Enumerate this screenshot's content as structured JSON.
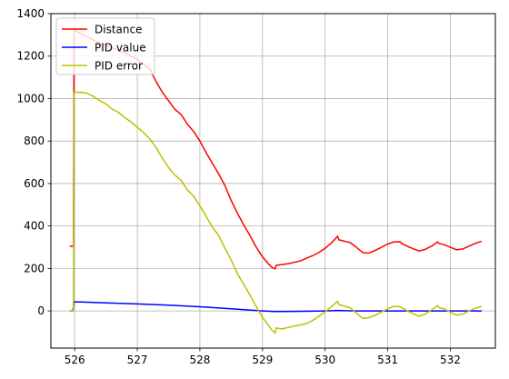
{
  "chart_data": {
    "type": "line",
    "title": "",
    "xlabel": "",
    "ylabel": "",
    "xlim": [
      525.62,
      532.72
    ],
    "ylim": [
      -175,
      1400
    ],
    "xticks": [
      526,
      527,
      528,
      529,
      530,
      531,
      532
    ],
    "yticks": [
      0,
      200,
      400,
      600,
      800,
      1000,
      1200,
      1400
    ],
    "grid": true,
    "legend": "upper-left",
    "series": [
      {
        "name": "Distance",
        "color": "#ff0000",
        "points": [
          [
            525.92,
            305
          ],
          [
            525.97,
            305
          ],
          [
            525.98,
            305
          ],
          [
            525.99,
            1330
          ],
          [
            526.02,
            1320
          ],
          [
            526.1,
            1305
          ],
          [
            526.2,
            1290
          ],
          [
            526.4,
            1262
          ],
          [
            526.6,
            1238
          ],
          [
            526.8,
            1215
          ],
          [
            527.0,
            1185
          ],
          [
            527.2,
            1140
          ],
          [
            527.3,
            1080
          ],
          [
            527.4,
            1030
          ],
          [
            527.5,
            990
          ],
          [
            527.6,
            950
          ],
          [
            527.7,
            925
          ],
          [
            527.8,
            880
          ],
          [
            527.9,
            845
          ],
          [
            528.0,
            800
          ],
          [
            528.1,
            745
          ],
          [
            528.2,
            695
          ],
          [
            528.3,
            645
          ],
          [
            528.4,
            590
          ],
          [
            528.5,
            520
          ],
          [
            528.6,
            460
          ],
          [
            528.7,
            405
          ],
          [
            528.8,
            355
          ],
          [
            528.9,
            300
          ],
          [
            529.0,
            255
          ],
          [
            529.1,
            220
          ],
          [
            529.15,
            205
          ],
          [
            529.2,
            198
          ],
          [
            529.22,
            215
          ],
          [
            529.4,
            222
          ],
          [
            529.6,
            235
          ],
          [
            529.8,
            260
          ],
          [
            529.9,
            275
          ],
          [
            530.0,
            295
          ],
          [
            530.1,
            320
          ],
          [
            530.2,
            352
          ],
          [
            530.22,
            335
          ],
          [
            530.4,
            322
          ],
          [
            530.5,
            300
          ],
          [
            530.6,
            275
          ],
          [
            530.7,
            272
          ],
          [
            530.8,
            285
          ],
          [
            530.9,
            300
          ],
          [
            531.0,
            315
          ],
          [
            531.1,
            325
          ],
          [
            531.2,
            326
          ],
          [
            531.22,
            318
          ],
          [
            531.35,
            300
          ],
          [
            531.5,
            282
          ],
          [
            531.6,
            290
          ],
          [
            531.7,
            305
          ],
          [
            531.8,
            325
          ],
          [
            531.82,
            318
          ],
          [
            531.9,
            312
          ],
          [
            532.0,
            300
          ],
          [
            532.1,
            288
          ],
          [
            532.2,
            292
          ],
          [
            532.3,
            305
          ],
          [
            532.4,
            318
          ],
          [
            532.5,
            328
          ]
        ]
      },
      {
        "name": "PID value",
        "color": "#0000ff",
        "points": [
          [
            525.92,
            0
          ],
          [
            525.97,
            0
          ],
          [
            525.99,
            42
          ],
          [
            526.1,
            42
          ],
          [
            526.5,
            38
          ],
          [
            527.0,
            33
          ],
          [
            527.5,
            27
          ],
          [
            528.0,
            20
          ],
          [
            528.5,
            10
          ],
          [
            528.9,
            2
          ],
          [
            529.0,
            0
          ],
          [
            529.2,
            -3
          ],
          [
            529.5,
            -2
          ],
          [
            530.0,
            0
          ],
          [
            530.2,
            2
          ],
          [
            530.5,
            0
          ],
          [
            531.0,
            0
          ],
          [
            531.5,
            0
          ],
          [
            532.0,
            0
          ],
          [
            532.5,
            0
          ]
        ]
      },
      {
        "name": "PID error",
        "color": "#bfbf00",
        "points": [
          [
            525.92,
            0
          ],
          [
            525.97,
            0
          ],
          [
            525.98,
            5
          ],
          [
            525.99,
            1030
          ],
          [
            526.1,
            1030
          ],
          [
            526.2,
            1025
          ],
          [
            526.3,
            1010
          ],
          [
            526.4,
            990
          ],
          [
            526.5,
            975
          ],
          [
            526.6,
            950
          ],
          [
            526.7,
            935
          ],
          [
            526.8,
            910
          ],
          [
            526.9,
            890
          ],
          [
            527.0,
            865
          ],
          [
            527.1,
            840
          ],
          [
            527.2,
            810
          ],
          [
            527.3,
            770
          ],
          [
            527.4,
            720
          ],
          [
            527.5,
            675
          ],
          [
            527.6,
            640
          ],
          [
            527.7,
            615
          ],
          [
            527.8,
            570
          ],
          [
            527.9,
            540
          ],
          [
            528.0,
            495
          ],
          [
            528.1,
            445
          ],
          [
            528.2,
            395
          ],
          [
            528.3,
            355
          ],
          [
            528.4,
            295
          ],
          [
            528.5,
            240
          ],
          [
            528.6,
            175
          ],
          [
            528.7,
            125
          ],
          [
            528.8,
            75
          ],
          [
            528.9,
            20
          ],
          [
            529.0,
            -30
          ],
          [
            529.1,
            -70
          ],
          [
            529.15,
            -90
          ],
          [
            529.2,
            -105
          ],
          [
            529.22,
            -80
          ],
          [
            529.3,
            -85
          ],
          [
            529.5,
            -72
          ],
          [
            529.7,
            -60
          ],
          [
            529.8,
            -45
          ],
          [
            529.9,
            -25
          ],
          [
            530.0,
            -5
          ],
          [
            530.1,
            20
          ],
          [
            530.2,
            45
          ],
          [
            530.22,
            30
          ],
          [
            530.4,
            15
          ],
          [
            530.5,
            -10
          ],
          [
            530.6,
            -35
          ],
          [
            530.7,
            -32
          ],
          [
            530.8,
            -20
          ],
          [
            530.9,
            -5
          ],
          [
            531.0,
            10
          ],
          [
            531.1,
            22
          ],
          [
            531.2,
            20
          ],
          [
            531.22,
            15
          ],
          [
            531.35,
            -5
          ],
          [
            531.5,
            -25
          ],
          [
            531.6,
            -15
          ],
          [
            531.7,
            5
          ],
          [
            531.8,
            25
          ],
          [
            531.82,
            15
          ],
          [
            531.9,
            10
          ],
          [
            532.0,
            -5
          ],
          [
            532.1,
            -20
          ],
          [
            532.2,
            -15
          ],
          [
            532.3,
            0
          ],
          [
            532.4,
            12
          ],
          [
            532.5,
            22
          ]
        ]
      }
    ]
  }
}
